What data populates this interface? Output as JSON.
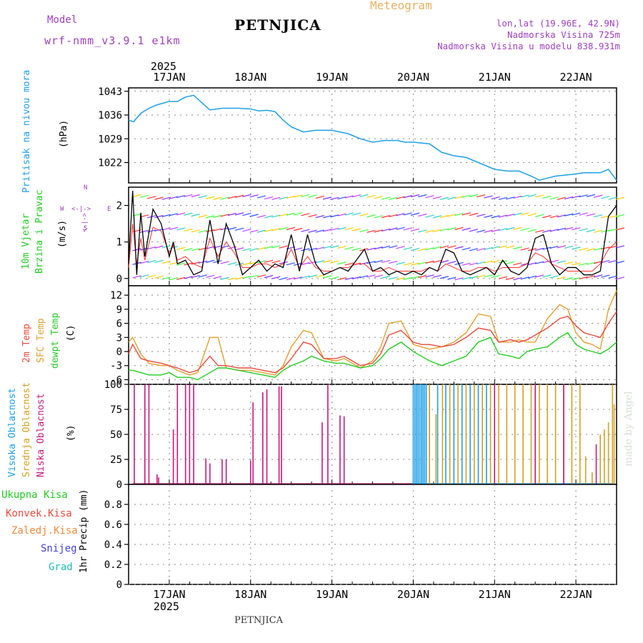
{
  "header": {
    "model_label": "Model",
    "model_name": "wrf-nmm_v3.9.1 e1km",
    "station": "PETNJICA",
    "meteogram": "Meteogram",
    "lonlat": "lon,lat (19.96E, 42.9N)",
    "altitude": "Nadmorska Visina 725m",
    "model_altitude": "Nadmorska Visina u modelu 838.931m"
  },
  "footer": {
    "station": "PETNJICA",
    "credit": "made by Angel"
  },
  "colors": {
    "pressure": "#1ea0e6",
    "temp2m": "#e84a3c",
    "sfc": "#e0a030",
    "dew": "#22cc22",
    "visoka": "#1ea0e6",
    "srednja": "#d4a020",
    "niska": "#c8187a",
    "wind_black": "#000000"
  },
  "x_axis": {
    "year": "2025",
    "days": [
      "17JAN",
      "18JAN",
      "19JAN",
      "20JAN",
      "21JAN",
      "22JAN"
    ],
    "day_positions": [
      1,
      2,
      3,
      4,
      5,
      6
    ],
    "range": [
      0.5,
      6.5
    ]
  },
  "panels": {
    "pressure": {
      "labels": [
        "Pritisak na nivou mora",
        "(hPa)"
      ],
      "ticks": [
        "1022",
        "1029",
        "1036",
        "1043"
      ]
    },
    "wind": {
      "labels": [
        "10m Vjetar",
        "Brzina i Pravac",
        "(m/s)"
      ],
      "compass": {
        "n": "N",
        "w": "W",
        "e": "E",
        "s": "S",
        "arrows": "<-|->"
      },
      "ticks": [
        "0",
        "1",
        "2"
      ]
    },
    "temp": {
      "labels": [
        "2m Temp",
        "SFC Temp",
        "dewpt Temp",
        "(C)"
      ],
      "ticks": [
        "-6",
        "-3",
        "0",
        "3",
        "6",
        "9",
        "12"
      ]
    },
    "cloud": {
      "labels": [
        "Visoka Oblacnost",
        "Srednja Oblacnost",
        "Niska Oblacnost",
        "(%)"
      ],
      "ticks": [
        "0",
        "25",
        "50",
        "75",
        "100"
      ]
    },
    "precip": {
      "legend": [
        "Ukupna Kisa",
        "Konvek.Kisa",
        "Zaledj.Kisa",
        "Snijeg",
        "Grad"
      ],
      "legend_colors": [
        "#22cc22",
        "#e84a3c",
        "#f08a3c",
        "#4040ee",
        "#22bbbb"
      ],
      "labels": [
        "1hr Precip (mm)"
      ],
      "ticks": [
        "0",
        "0.2",
        "0.4",
        "0.6",
        "0.8"
      ]
    }
  },
  "chart_data": [
    {
      "type": "line",
      "title": "Pritisak na nivou mora",
      "ylabel": "(hPa)",
      "ylim": [
        1016,
        1044
      ],
      "x": [
        0.5,
        0.56,
        0.65,
        0.75,
        0.85,
        1.0,
        1.1,
        1.2,
        1.3,
        1.5,
        1.65,
        1.75,
        1.85,
        2.0,
        2.1,
        2.2,
        2.3,
        2.4,
        2.5,
        2.65,
        2.8,
        3.0,
        3.2,
        3.35,
        3.5,
        3.65,
        3.8,
        3.9,
        4.0,
        4.2,
        4.35,
        4.5,
        4.65,
        4.8,
        5.0,
        5.15,
        5.3,
        5.45,
        5.55,
        5.75,
        5.95,
        6.1,
        6.3,
        6.4,
        6.5
      ],
      "y": [
        1034.5,
        1034,
        1036.5,
        1038,
        1039,
        1040,
        1040,
        1041.3,
        1041.8,
        1037.5,
        1038,
        1038,
        1038,
        1037.8,
        1037.2,
        1037.4,
        1037,
        1034.5,
        1032.5,
        1031,
        1031.5,
        1031.5,
        1030.5,
        1029,
        1028,
        1028.5,
        1028.5,
        1028,
        1028,
        1027.5,
        1025,
        1024,
        1023.5,
        1022,
        1020,
        1019.5,
        1019.5,
        1018,
        1016.8,
        1018,
        1018.5,
        1019,
        1019,
        1020,
        1016.8
      ],
      "grid": true
    },
    {
      "type": "line",
      "title": "10m Vjetar Brzina i Pravac",
      "ylabel": "(m/s)",
      "ylim": [
        -0.2,
        2.5
      ],
      "x": [
        0.5,
        0.55,
        0.6,
        0.65,
        0.7,
        0.8,
        0.9,
        1.0,
        1.05,
        1.1,
        1.2,
        1.3,
        1.4,
        1.5,
        1.6,
        1.7,
        1.8,
        1.9,
        2.0,
        2.1,
        2.2,
        2.3,
        2.4,
        2.5,
        2.6,
        2.7,
        2.8,
        2.9,
        3.0,
        3.1,
        3.2,
        3.3,
        3.4,
        3.5,
        3.6,
        3.7,
        3.8,
        3.9,
        4.0,
        4.1,
        4.2,
        4.3,
        4.4,
        4.5,
        4.6,
        4.7,
        4.8,
        4.9,
        5.0,
        5.1,
        5.2,
        5.3,
        5.4,
        5.5,
        5.6,
        5.7,
        5.8,
        5.9,
        6.0,
        6.1,
        6.2,
        6.3,
        6.4,
        6.5
      ],
      "series": [
        {
          "name": "",
          "values": [
            0.4,
            2.4,
            0.1,
            1.8,
            0.6,
            1.9,
            1.5,
            0.6,
            1.0,
            0.4,
            0.5,
            0.1,
            0.2,
            1.6,
            0.4,
            1.5,
            0.9,
            0.1,
            0.3,
            0.5,
            0.2,
            0.4,
            0.3,
            1.2,
            0.2,
            1.2,
            0.4,
            0.1,
            0.2,
            0.3,
            0.2,
            0.5,
            0.8,
            0.2,
            0.3,
            0.1,
            0.2,
            0.1,
            0.2,
            0.1,
            0.3,
            0.2,
            0.8,
            0.7,
            0.2,
            0.1,
            0.2,
            0.3,
            0.1,
            0.5,
            0.2,
            0.1,
            0.3,
            1.1,
            1.2,
            0.4,
            0.1,
            0.3,
            0.3,
            0.1,
            0.1,
            0.2,
            1.7,
            2.0
          ]
        },
        {
          "name": "",
          "values": [
            0.3,
            1.5,
            0.4,
            1.1,
            0.5,
            1.4,
            1.3,
            0.7,
            0.9,
            0.5,
            0.6,
            0.4,
            0.3,
            1.1,
            0.6,
            1.0,
            0.7,
            0.3,
            0.3,
            0.4,
            0.4,
            0.3,
            0.4,
            0.8,
            0.3,
            0.6,
            0.3,
            0.2,
            0.2,
            0.3,
            0.3,
            0.4,
            0.4,
            0.2,
            0.2,
            0.3,
            0.2,
            0.2,
            0.2,
            0.2,
            0.3,
            0.2,
            0.4,
            0.3,
            0.2,
            0.2,
            0.3,
            0.3,
            0.2,
            0.3,
            0.3,
            0.3,
            0.4,
            0.7,
            0.6,
            0.4,
            0.3,
            0.2,
            0.2,
            0.2,
            0.2,
            0.4,
            0.8,
            1.0
          ]
        }
      ],
      "grid": true
    },
    {
      "type": "line",
      "title": "Temp",
      "ylabel": "(C)",
      "ylim": [
        -7,
        14
      ],
      "x": [
        0.5,
        0.55,
        0.65,
        0.75,
        0.9,
        1.0,
        1.1,
        1.25,
        1.35,
        1.5,
        1.6,
        1.7,
        1.85,
        2.0,
        2.15,
        2.3,
        2.4,
        2.5,
        2.65,
        2.75,
        2.9,
        3.05,
        3.15,
        3.25,
        3.35,
        3.5,
        3.6,
        3.7,
        3.85,
        4.0,
        4.1,
        4.2,
        4.35,
        4.5,
        4.65,
        4.8,
        4.95,
        5.05,
        5.2,
        5.3,
        5.4,
        5.5,
        5.65,
        5.8,
        5.9,
        6.0,
        6.1,
        6.2,
        6.3,
        6.4,
        6.5
      ],
      "series": [
        {
          "name": "2m Temp",
          "values": [
            -0.5,
            1.5,
            -1.5,
            -2.0,
            -2.5,
            -3.0,
            -3.5,
            -4.5,
            -4.0,
            -1.0,
            -3.0,
            -3.0,
            -3.5,
            -3.5,
            -4.0,
            -4.5,
            -3.5,
            -1.5,
            2.0,
            1.5,
            -1.5,
            -1.5,
            -1.0,
            -2.0,
            -3.0,
            -2.5,
            -0.5,
            3.5,
            4.5,
            2.0,
            1.5,
            1.5,
            1.0,
            1.5,
            3.0,
            5.0,
            4.5,
            2.0,
            2.5,
            2.0,
            2.5,
            3.5,
            5.0,
            7.0,
            7.5,
            5.5,
            4.0,
            3.5,
            3.0,
            6.0,
            8.5
          ]
        },
        {
          "name": "SFC Temp",
          "values": [
            2.0,
            3.0,
            -0.5,
            -2.5,
            -3.0,
            -3.0,
            -4.0,
            -5.0,
            -4.5,
            3.0,
            3.0,
            -3.5,
            -4.0,
            -4.0,
            -4.5,
            -5.0,
            -3.0,
            1.0,
            4.5,
            4.0,
            -1.5,
            -2.0,
            -1.5,
            -2.5,
            -3.5,
            -2.0,
            1.0,
            6.0,
            6.5,
            1.5,
            1.0,
            0.5,
            1.0,
            2.0,
            4.0,
            8.0,
            7.5,
            2.0,
            2.0,
            2.5,
            2.0,
            2.0,
            7.0,
            10.0,
            9.0,
            4.0,
            2.0,
            1.5,
            0.5,
            9.0,
            13.0
          ]
        },
        {
          "name": "dewpt Temp",
          "values": [
            -4.0,
            -4.0,
            -4.5,
            -5.0,
            -5.0,
            -4.5,
            -5.5,
            -5.5,
            -6.0,
            -4.5,
            -3.5,
            -3.5,
            -4.0,
            -4.5,
            -5.0,
            -5.5,
            -4.0,
            -3.0,
            -2.0,
            -1.0,
            -2.0,
            -2.5,
            -2.5,
            -3.0,
            -3.5,
            -3.0,
            -1.5,
            0.5,
            2.0,
            0.0,
            -1.0,
            -2.0,
            -3.0,
            -2.0,
            -1.0,
            2.0,
            3.0,
            -0.5,
            -1.0,
            -1.5,
            0.0,
            0.5,
            1.0,
            3.0,
            4.0,
            1.5,
            0.5,
            0.0,
            -0.5,
            0.5,
            2.0
          ]
        }
      ],
      "grid": true
    },
    {
      "type": "bar",
      "title": "Oblacnost",
      "ylabel": "(%)",
      "ylim": [
        0,
        100
      ],
      "series": [
        {
          "name": "Visoka Oblacnost",
          "x": [
            4.0,
            4.02,
            4.04,
            4.06,
            4.08,
            4.1,
            4.12,
            4.14,
            4.16,
            4.2,
            4.3,
            4.4,
            4.5,
            4.6,
            4.7,
            4.8,
            4.9
          ],
          "values": [
            100,
            100,
            100,
            100,
            100,
            100,
            100,
            100,
            100,
            100,
            100,
            100,
            100,
            100,
            100,
            100,
            100
          ]
        },
        {
          "name": "Srednja Oblacnost",
          "x": [
            4.2,
            4.28,
            4.36,
            4.45,
            4.55,
            4.65,
            4.75,
            4.85,
            4.95,
            5.05,
            5.15,
            5.25,
            5.35,
            5.45,
            5.55,
            5.65,
            5.75,
            5.85,
            5.95,
            6.05,
            6.12,
            6.2,
            6.3,
            6.35,
            6.4,
            6.45,
            6.47
          ],
          "values": [
            100,
            70,
            100,
            100,
            100,
            100,
            100,
            100,
            100,
            100,
            100,
            100,
            100,
            100,
            100,
            100,
            100,
            100,
            100,
            100,
            28,
            12,
            50,
            55,
            62,
            100,
            80
          ]
        },
        {
          "name": "Niska Oblacnost",
          "x": [
            0.57,
            0.7,
            0.75,
            0.85,
            0.87,
            1.05,
            1.1,
            1.2,
            1.25,
            1.3,
            1.45,
            1.5,
            1.65,
            1.7,
            2.0,
            2.03,
            2.15,
            2.2,
            2.35,
            2.38,
            2.88,
            2.95,
            3.1,
            3.15,
            5.0,
            5.5,
            5.85,
            6.25
          ],
          "values": [
            100,
            100,
            100,
            10,
            7,
            55,
            100,
            100,
            100,
            100,
            26,
            21,
            25,
            25,
            24,
            82,
            92,
            95,
            98,
            98,
            62,
            100,
            69,
            68,
            100,
            100,
            100,
            40
          ]
        }
      ],
      "grid": true
    },
    {
      "type": "bar",
      "title": "1hr Precip",
      "ylabel": "1hr Precip (mm)",
      "ylim": [
        0,
        1.0
      ],
      "series": [
        {
          "name": "Ukupna Kisa",
          "x": [],
          "values": []
        },
        {
          "name": "Konvek.Kisa",
          "x": [],
          "values": []
        },
        {
          "name": "Zaledj.Kisa",
          "x": [],
          "values": []
        },
        {
          "name": "Snijeg",
          "x": [],
          "values": []
        },
        {
          "name": "Grad",
          "x": [],
          "values": []
        }
      ],
      "grid": true
    }
  ]
}
